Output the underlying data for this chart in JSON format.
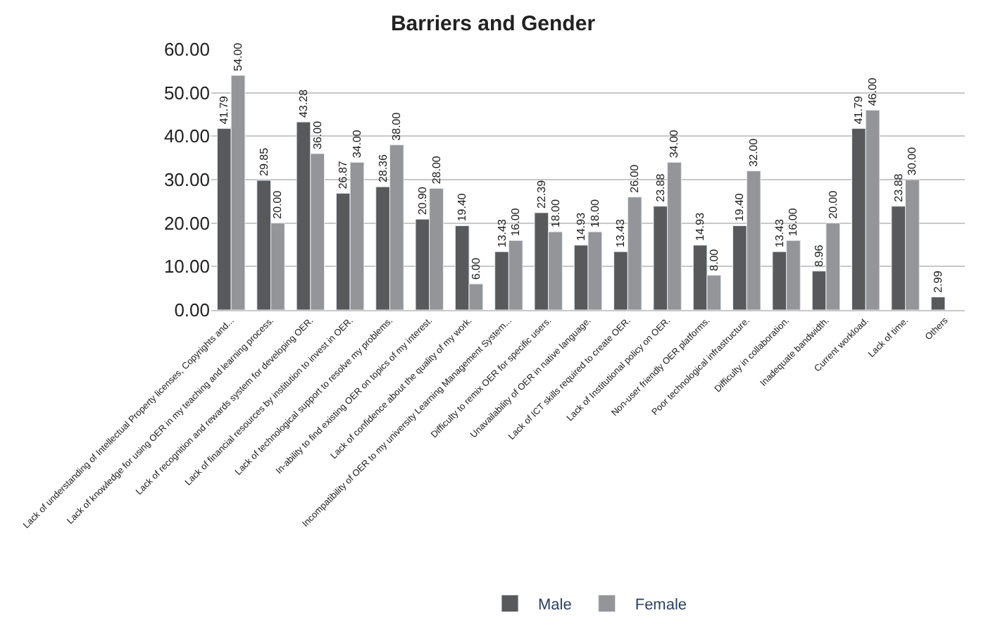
{
  "chart_data": {
    "type": "bar",
    "title": "Barriers and Gender",
    "categories": [
      "Lack of understanding of Intellectual Property licenses, Copyrights and...",
      "Lack of knowledge for using OER in my teaching and learning process.",
      "Lack of recognition and rewards system for developing OER.",
      "Lack of financial resources by institution to invest in OER.",
      "Lack of technological support to resolve my problems.",
      "In-ability to find existing OER on topics of my interest.",
      "Lack of confidence about the quality of my work.",
      "Incompatibility of OER to my university Learning Management System...",
      "Difficulty to remix OER for specific users.",
      "Unavailability of OER in native language.",
      "Lack of ICT skills required to create OER.",
      "Lack of Institutional policy on OER.",
      "Non-user friendly OER platforms.",
      "Poor technological infrastructure.",
      "Difficulty in collaboration.",
      "Inadequate bandwidth.",
      "Current workload.",
      "Lack of time.",
      "Others"
    ],
    "series": [
      {
        "name": "Male",
        "color": "#58595b",
        "values": [
          41.79,
          29.85,
          43.28,
          26.87,
          28.36,
          20.9,
          19.4,
          13.43,
          22.39,
          14.93,
          13.43,
          23.88,
          14.93,
          19.4,
          13.43,
          8.96,
          41.79,
          23.88,
          2.99
        ],
        "value_labels": [
          "41.79",
          "29.85",
          "43.28",
          "26.87",
          "28.36",
          "20.90",
          "19.40",
          "13.43",
          "22.39",
          "14.93",
          "13.43",
          "23.88",
          "14.93",
          "19.40",
          "13.43",
          "8.96",
          "41.79",
          "23.88",
          "2.99"
        ]
      },
      {
        "name": "Female",
        "color": "#939598",
        "values": [
          54,
          20,
          36,
          34,
          38,
          28,
          6,
          16,
          18,
          18,
          26,
          34,
          8,
          32,
          16,
          20,
          46,
          30,
          null
        ],
        "value_labels": [
          "54.00",
          "20.00",
          "36.00",
          "34.00",
          "38.00",
          "28.00",
          "6.00",
          "16.00",
          "18.00",
          "18.00",
          "26.00",
          "34.00",
          "8.00",
          "32.00",
          "16.00",
          "20.00",
          "46.00",
          "30.00",
          null
        ]
      }
    ],
    "ylim": [
      0,
      60
    ],
    "yticks": [
      {
        "value": 0,
        "label": "0.00"
      },
      {
        "value": 10,
        "label": "10.00"
      },
      {
        "value": 20,
        "label": "20.00"
      },
      {
        "value": 30,
        "label": "30.00"
      },
      {
        "value": 40,
        "label": "40.00"
      },
      {
        "value": 50,
        "label": "50.00"
      },
      {
        "value": 60,
        "label": "60.00"
      }
    ],
    "grid": "y",
    "legend": "bottom"
  }
}
